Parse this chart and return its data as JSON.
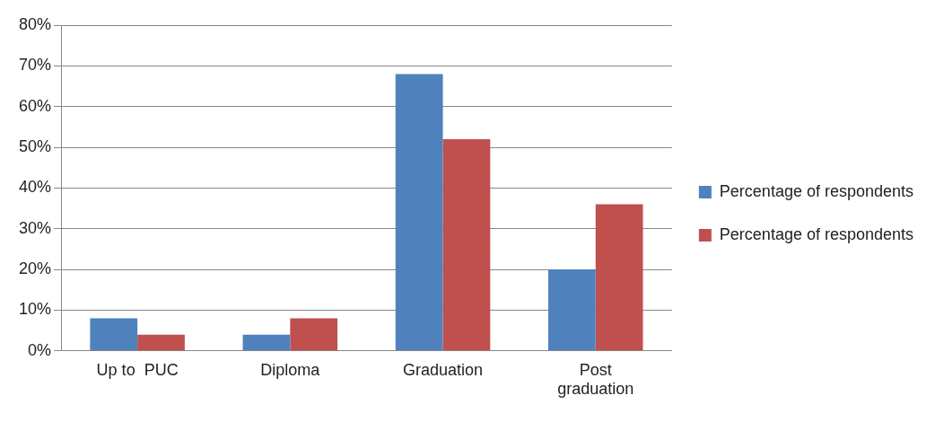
{
  "chart_data": {
    "type": "bar",
    "categories": [
      "Up to  PUC",
      "Diploma",
      "Graduation",
      "Post graduation"
    ],
    "series": [
      {
        "name": "Percentage of respondents",
        "color": "#4f81bd",
        "values": [
          8,
          4,
          68,
          20
        ]
      },
      {
        "name": "Percentage of respondents",
        "color": "#c0504d",
        "values": [
          4,
          8,
          52,
          36
        ]
      }
    ],
    "ylim": [
      0,
      80
    ],
    "yticks": [
      {
        "value": 0,
        "label": "0%"
      },
      {
        "value": 10,
        "label": "10%"
      },
      {
        "value": 20,
        "label": "20%"
      },
      {
        "value": 30,
        "label": "30%"
      },
      {
        "value": 40,
        "label": "40%"
      },
      {
        "value": 50,
        "label": "50%"
      },
      {
        "value": 60,
        "label": "60%"
      },
      {
        "value": 70,
        "label": "70%"
      },
      {
        "value": 80,
        "label": "80%"
      }
    ],
    "grid": "y",
    "legend": "right"
  }
}
